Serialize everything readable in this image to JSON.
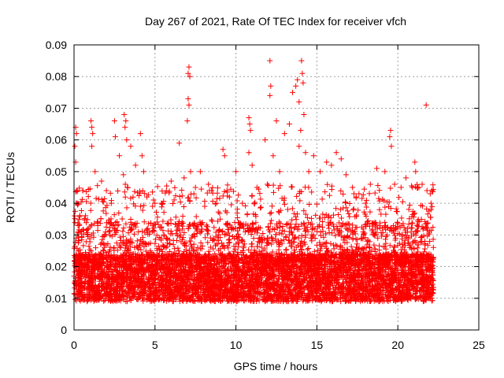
{
  "chart_data": {
    "type": "scatter",
    "title": "Day 267 of 2021, Rate Of TEC Index for receiver vfch",
    "xlabel": "GPS time / hours",
    "ylabel": "ROTI / TECUs",
    "xlim": [
      0,
      25
    ],
    "ylim": [
      0,
      0.09
    ],
    "xticks": [
      "0",
      "5",
      "10",
      "15",
      "20",
      "25"
    ],
    "yticks": [
      "0",
      "0.01",
      "0.02",
      "0.03",
      "0.04",
      "0.05",
      "0.06",
      "0.07",
      "0.08",
      "0.09"
    ],
    "grid": true,
    "marker": "+",
    "color": "#ff0000",
    "series": [
      {
        "points": [
          [
            0.05,
            0.058
          ],
          [
            0.1,
            0.064
          ],
          [
            0.15,
            0.062
          ],
          [
            0.1,
            0.053
          ],
          [
            0.15,
            0.044
          ],
          [
            0.2,
            0.04
          ],
          [
            0.55,
            0.044
          ],
          [
            1.05,
            0.066
          ],
          [
            1.1,
            0.064
          ],
          [
            1.15,
            0.062
          ],
          [
            1.1,
            0.058
          ],
          [
            1.3,
            0.05
          ],
          [
            1.7,
            0.047
          ],
          [
            2.0,
            0.044
          ],
          [
            2.3,
            0.04
          ],
          [
            2.5,
            0.066
          ],
          [
            2.55,
            0.061
          ],
          [
            2.8,
            0.055
          ],
          [
            3.1,
            0.068
          ],
          [
            3.2,
            0.066
          ],
          [
            3.15,
            0.064
          ],
          [
            3.25,
            0.06
          ],
          [
            3.05,
            0.049
          ],
          [
            3.3,
            0.045
          ],
          [
            3.5,
            0.058
          ],
          [
            3.8,
            0.052
          ],
          [
            4.1,
            0.062
          ],
          [
            4.2,
            0.055
          ],
          [
            4.3,
            0.05
          ],
          [
            4.5,
            0.042
          ],
          [
            5.0,
            0.04
          ],
          [
            5.4,
            0.04
          ],
          [
            6.0,
            0.047
          ],
          [
            6.5,
            0.059
          ],
          [
            6.8,
            0.048
          ],
          [
            7.05,
            0.081
          ],
          [
            7.1,
            0.083
          ],
          [
            7.15,
            0.08
          ],
          [
            7.05,
            0.073
          ],
          [
            7.1,
            0.071
          ],
          [
            7.0,
            0.066
          ],
          [
            7.2,
            0.05
          ],
          [
            7.5,
            0.045
          ],
          [
            7.8,
            0.05
          ],
          [
            8.3,
            0.046
          ],
          [
            8.8,
            0.04
          ],
          [
            9.2,
            0.057
          ],
          [
            9.3,
            0.055
          ],
          [
            9.6,
            0.042
          ],
          [
            10.0,
            0.05
          ],
          [
            10.4,
            0.04
          ],
          [
            10.8,
            0.067
          ],
          [
            10.85,
            0.065
          ],
          [
            10.9,
            0.063
          ],
          [
            10.8,
            0.056
          ],
          [
            11.0,
            0.052
          ],
          [
            11.3,
            0.045
          ],
          [
            11.8,
            0.06
          ],
          [
            12.1,
            0.085
          ],
          [
            12.15,
            0.077
          ],
          [
            12.1,
            0.074
          ],
          [
            12.3,
            0.055
          ],
          [
            12.5,
            0.066
          ],
          [
            12.7,
            0.05
          ],
          [
            13.0,
            0.062
          ],
          [
            13.3,
            0.065
          ],
          [
            13.5,
            0.075
          ],
          [
            13.7,
            0.077
          ],
          [
            13.8,
            0.079
          ],
          [
            13.9,
            0.072
          ],
          [
            14.05,
            0.085
          ],
          [
            14.1,
            0.081
          ],
          [
            14.15,
            0.078
          ],
          [
            14.2,
            0.068
          ],
          [
            14.0,
            0.063
          ],
          [
            13.9,
            0.058
          ],
          [
            14.3,
            0.056
          ],
          [
            14.5,
            0.05
          ],
          [
            14.8,
            0.055
          ],
          [
            15.2,
            0.05
          ],
          [
            15.6,
            0.053
          ],
          [
            15.9,
            0.052
          ],
          [
            16.2,
            0.056
          ],
          [
            16.5,
            0.054
          ],
          [
            16.8,
            0.049
          ],
          [
            17.2,
            0.045
          ],
          [
            17.6,
            0.043
          ],
          [
            18.0,
            0.04
          ],
          [
            18.3,
            0.046
          ],
          [
            18.7,
            0.051
          ],
          [
            19.2,
            0.05
          ],
          [
            19.5,
            0.061
          ],
          [
            19.55,
            0.063
          ],
          [
            19.6,
            0.058
          ],
          [
            19.8,
            0.046
          ],
          [
            20.2,
            0.045
          ],
          [
            20.5,
            0.048
          ],
          [
            20.9,
            0.045
          ],
          [
            21.05,
            0.053
          ],
          [
            21.1,
            0.05
          ],
          [
            21.3,
            0.045
          ],
          [
            21.5,
            0.046
          ],
          [
            21.75,
            0.071
          ],
          [
            21.8,
            0.044
          ],
          [
            22.0,
            0.043
          ],
          [
            22.05,
            0.04
          ]
        ]
      }
    ]
  }
}
